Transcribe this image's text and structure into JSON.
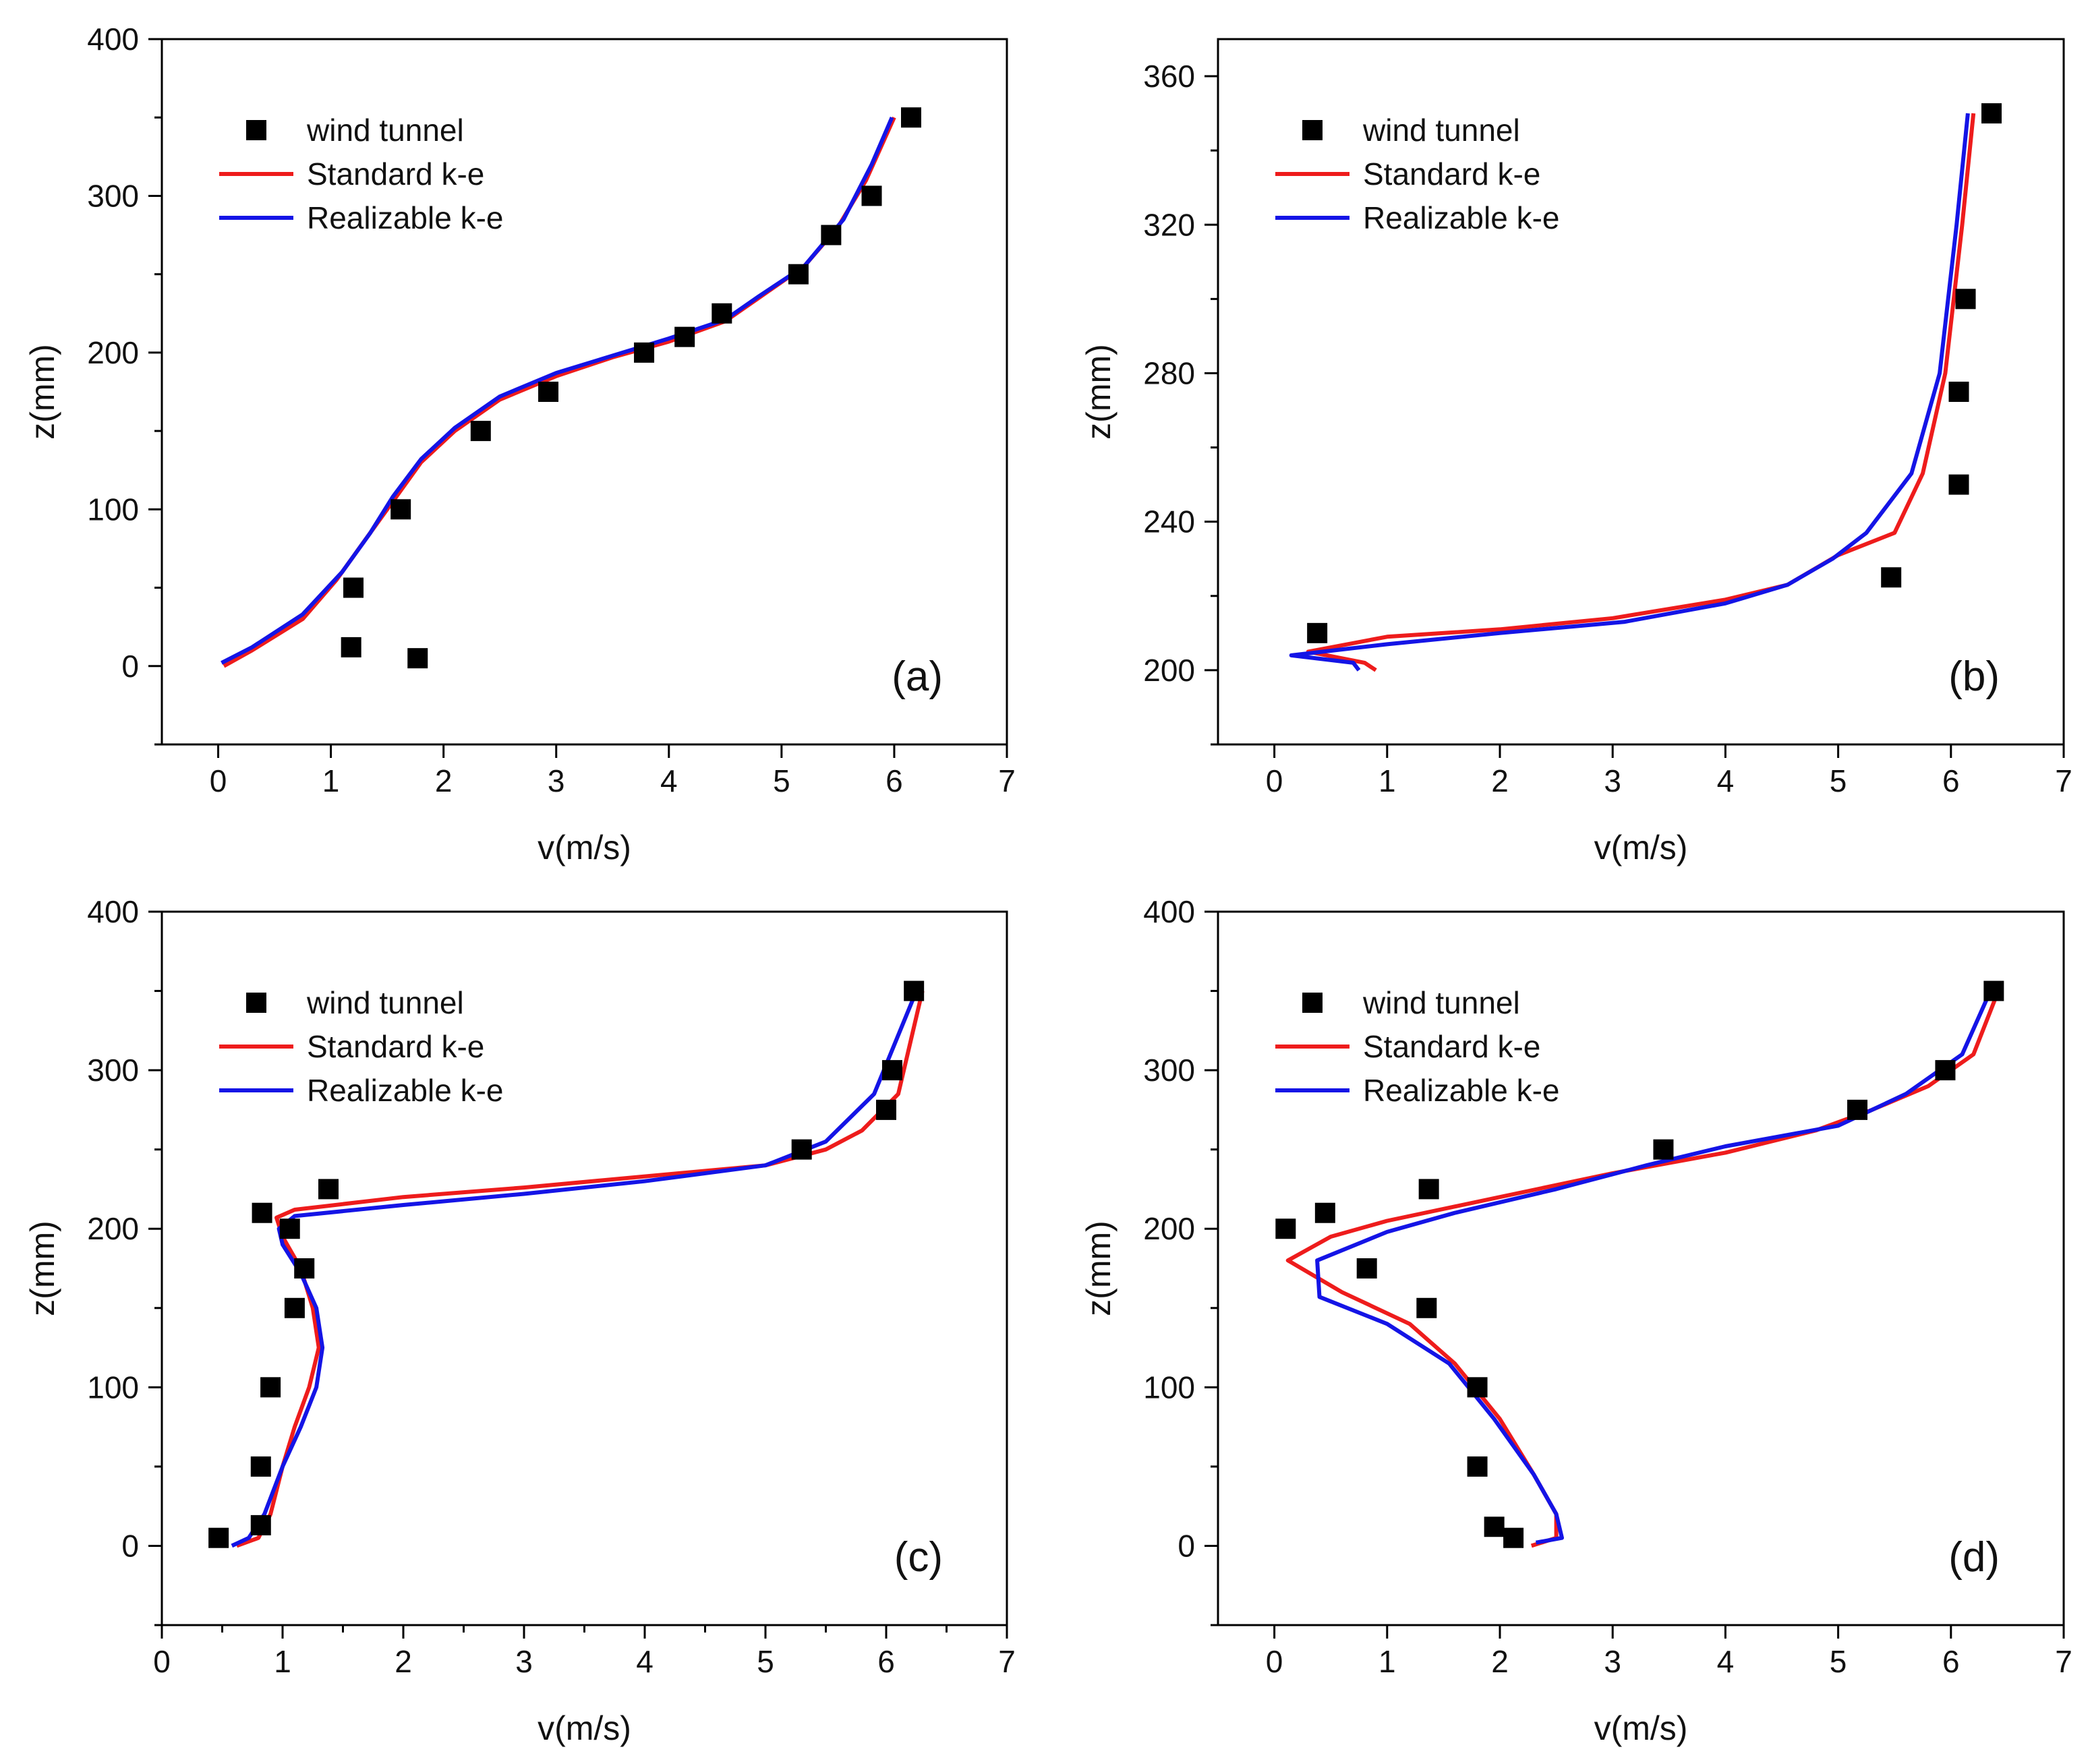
{
  "colors": {
    "wind_tunnel": "#000000",
    "standard": "#ee1c1c",
    "realizable": "#1414e6",
    "axis": "#000000"
  },
  "chart_data": [
    {
      "type": "line",
      "panel": "(a)",
      "xlabel": "v(m/s)",
      "ylabel": "z(mm)",
      "xlim": [
        -0.5,
        7
      ],
      "ylim": [
        -50,
        400
      ],
      "x_ticks": [
        0,
        1,
        2,
        3,
        4,
        5,
        6,
        7
      ],
      "y_ticks": [
        0,
        100,
        200,
        300,
        400
      ],
      "legend_position": "top-left",
      "grid": false,
      "series": [
        {
          "name": "wind tunnel",
          "kind": "scatter",
          "marker": "square",
          "points": [
            [
              1.18,
              12
            ],
            [
              1.77,
              5
            ],
            [
              1.2,
              50
            ],
            [
              1.62,
              100
            ],
            [
              2.33,
              150
            ],
            [
              2.93,
              175
            ],
            [
              3.78,
              200
            ],
            [
              4.14,
              210
            ],
            [
              4.47,
              225
            ],
            [
              5.15,
              250
            ],
            [
              5.44,
              275
            ],
            [
              5.8,
              300
            ],
            [
              6.15,
              350
            ]
          ]
        },
        {
          "name": "Standard k-e",
          "kind": "line",
          "points": [
            [
              0.05,
              0
            ],
            [
              0.3,
              10
            ],
            [
              0.75,
              30
            ],
            [
              1.05,
              55
            ],
            [
              1.3,
              80
            ],
            [
              1.55,
              105
            ],
            [
              1.8,
              130
            ],
            [
              2.1,
              150
            ],
            [
              2.5,
              170
            ],
            [
              3.0,
              185
            ],
            [
              3.5,
              197
            ],
            [
              4.0,
              207
            ],
            [
              4.5,
              220
            ],
            [
              4.8,
              235
            ],
            [
              5.2,
              255
            ],
            [
              5.5,
              280
            ],
            [
              5.75,
              310
            ],
            [
              6.0,
              350
            ]
          ]
        },
        {
          "name": "Realizable k-e",
          "kind": "line",
          "points": [
            [
              0.03,
              2
            ],
            [
              0.3,
              12
            ],
            [
              0.75,
              33
            ],
            [
              1.1,
              60
            ],
            [
              1.35,
              85
            ],
            [
              1.55,
              108
            ],
            [
              1.8,
              132
            ],
            [
              2.1,
              152
            ],
            [
              2.5,
              172
            ],
            [
              3.0,
              187
            ],
            [
              3.5,
              198
            ],
            [
              4.0,
              209
            ],
            [
              4.5,
              221
            ],
            [
              4.8,
              236
            ],
            [
              5.2,
              255
            ],
            [
              5.55,
              285
            ],
            [
              5.8,
              320
            ],
            [
              5.98,
              350
            ]
          ]
        }
      ]
    },
    {
      "type": "line",
      "panel": "(b)",
      "xlabel": "v(m/s)",
      "ylabel": "z(mm)",
      "xlim": [
        -0.5,
        7
      ],
      "ylim": [
        180,
        370
      ],
      "x_ticks": [
        0,
        1,
        2,
        3,
        4,
        5,
        6,
        7
      ],
      "y_ticks": [
        200,
        240,
        280,
        320,
        360
      ],
      "legend_position": "top-left",
      "grid": false,
      "series": [
        {
          "name": "wind tunnel",
          "kind": "scatter",
          "marker": "square",
          "points": [
            [
              0.38,
              210
            ],
            [
              5.47,
              225
            ],
            [
              6.07,
              250
            ],
            [
              6.07,
              275
            ],
            [
              6.13,
              300
            ],
            [
              6.36,
              350
            ]
          ]
        },
        {
          "name": "Standard k-e",
          "kind": "line",
          "points": [
            [
              0.9,
              200
            ],
            [
              0.8,
              202
            ],
            [
              0.3,
              205
            ],
            [
              1.0,
              209
            ],
            [
              2.0,
              211
            ],
            [
              3.0,
              214
            ],
            [
              4.0,
              219
            ],
            [
              4.55,
              223
            ],
            [
              5.0,
              231
            ],
            [
              5.5,
              237
            ],
            [
              5.75,
              253
            ],
            [
              5.95,
              280
            ],
            [
              6.1,
              320
            ],
            [
              6.2,
              350
            ]
          ]
        },
        {
          "name": "Realizable k-e",
          "kind": "line",
          "points": [
            [
              0.75,
              200
            ],
            [
              0.7,
              202
            ],
            [
              0.15,
              204
            ],
            [
              1.0,
              207
            ],
            [
              2.0,
              210
            ],
            [
              3.1,
              213
            ],
            [
              4.0,
              218
            ],
            [
              4.55,
              223
            ],
            [
              4.95,
              230
            ],
            [
              5.25,
              237
            ],
            [
              5.65,
              253
            ],
            [
              5.9,
              280
            ],
            [
              6.05,
              320
            ],
            [
              6.15,
              350
            ]
          ]
        }
      ]
    },
    {
      "type": "line",
      "panel": "(c)",
      "xlabel": "v(m/s)",
      "ylabel": "z(mm)",
      "xlim": [
        0,
        7
      ],
      "ylim": [
        -50,
        400
      ],
      "x_ticks": [
        0,
        1,
        2,
        3,
        4,
        5,
        6,
        7
      ],
      "y_ticks": [
        0,
        100,
        200,
        300,
        400
      ],
      "legend_position": "top-left",
      "grid": false,
      "series": [
        {
          "name": "wind tunnel",
          "kind": "scatter",
          "marker": "square",
          "points": [
            [
              0.47,
              5
            ],
            [
              0.82,
              13
            ],
            [
              0.82,
              50
            ],
            [
              0.9,
              100
            ],
            [
              1.1,
              150
            ],
            [
              1.18,
              175
            ],
            [
              1.06,
              200
            ],
            [
              0.83,
              210
            ],
            [
              1.38,
              225
            ],
            [
              5.3,
              250
            ],
            [
              6.0,
              275
            ],
            [
              6.05,
              300
            ],
            [
              6.23,
              350
            ]
          ]
        },
        {
          "name": "Standard k-e",
          "kind": "line",
          "points": [
            [
              0.62,
              0
            ],
            [
              0.8,
              5
            ],
            [
              0.9,
              20
            ],
            [
              1.0,
              50
            ],
            [
              1.1,
              75
            ],
            [
              1.22,
              100
            ],
            [
              1.3,
              125
            ],
            [
              1.25,
              150
            ],
            [
              1.15,
              175
            ],
            [
              1.0,
              195
            ],
            [
              0.95,
              207
            ],
            [
              1.1,
              212
            ],
            [
              2.0,
              220
            ],
            [
              3.0,
              226
            ],
            [
              4.0,
              233
            ],
            [
              5.0,
              240
            ],
            [
              5.5,
              250
            ],
            [
              5.8,
              262
            ],
            [
              6.1,
              285
            ],
            [
              6.3,
              350
            ]
          ]
        },
        {
          "name": "Realizable k-e",
          "kind": "line",
          "points": [
            [
              0.58,
              0
            ],
            [
              0.72,
              5
            ],
            [
              0.85,
              20
            ],
            [
              1.0,
              50
            ],
            [
              1.15,
              75
            ],
            [
              1.28,
              100
            ],
            [
              1.33,
              125
            ],
            [
              1.28,
              150
            ],
            [
              1.15,
              172
            ],
            [
              1.0,
              190
            ],
            [
              0.97,
              200
            ],
            [
              1.1,
              208
            ],
            [
              2.0,
              215
            ],
            [
              3.0,
              222
            ],
            [
              4.0,
              230
            ],
            [
              5.0,
              240
            ],
            [
              5.5,
              255
            ],
            [
              5.9,
              285
            ],
            [
              6.25,
              350
            ]
          ]
        }
      ]
    },
    {
      "type": "line",
      "panel": "(d)",
      "xlabel": "v(m/s)",
      "ylabel": "z(mm)",
      "xlim": [
        -0.5,
        7
      ],
      "ylim": [
        -50,
        400
      ],
      "x_ticks": [
        0,
        1,
        2,
        3,
        4,
        5,
        6,
        7
      ],
      "y_ticks": [
        0,
        100,
        200,
        300,
        400
      ],
      "legend_position": "top-left",
      "grid": false,
      "series": [
        {
          "name": "wind tunnel",
          "kind": "scatter",
          "marker": "square",
          "points": [
            [
              2.12,
              5
            ],
            [
              1.95,
              12
            ],
            [
              1.8,
              50
            ],
            [
              1.8,
              100
            ],
            [
              1.35,
              150
            ],
            [
              0.82,
              175
            ],
            [
              0.1,
              200
            ],
            [
              0.45,
              210
            ],
            [
              1.37,
              225
            ],
            [
              3.45,
              250
            ],
            [
              5.17,
              275
            ],
            [
              5.95,
              300
            ],
            [
              6.38,
              350
            ]
          ]
        },
        {
          "name": "Standard k-e",
          "kind": "line",
          "points": [
            [
              2.28,
              0
            ],
            [
              2.5,
              5
            ],
            [
              2.5,
              20
            ],
            [
              2.3,
              45
            ],
            [
              2.0,
              80
            ],
            [
              1.6,
              115
            ],
            [
              1.2,
              140
            ],
            [
              0.6,
              160
            ],
            [
              0.12,
              180
            ],
            [
              0.5,
              195
            ],
            [
              1.0,
              205
            ],
            [
              2.0,
              220
            ],
            [
              3.0,
              235
            ],
            [
              4.0,
              248
            ],
            [
              4.8,
              262
            ],
            [
              5.3,
              275
            ],
            [
              5.8,
              290
            ],
            [
              6.2,
              310
            ],
            [
              6.42,
              350
            ]
          ]
        },
        {
          "name": "Realizable k-e",
          "kind": "line",
          "points": [
            [
              2.32,
              2
            ],
            [
              2.55,
              5
            ],
            [
              2.5,
              20
            ],
            [
              2.3,
              45
            ],
            [
              1.95,
              80
            ],
            [
              1.55,
              115
            ],
            [
              1.0,
              140
            ],
            [
              0.4,
              157
            ],
            [
              0.38,
              180
            ],
            [
              1.0,
              198
            ],
            [
              1.6,
              210
            ],
            [
              2.5,
              225
            ],
            [
              3.3,
              240
            ],
            [
              4.0,
              252
            ],
            [
              5.0,
              265
            ],
            [
              5.6,
              285
            ],
            [
              6.1,
              310
            ],
            [
              6.35,
              350
            ]
          ]
        }
      ]
    }
  ]
}
